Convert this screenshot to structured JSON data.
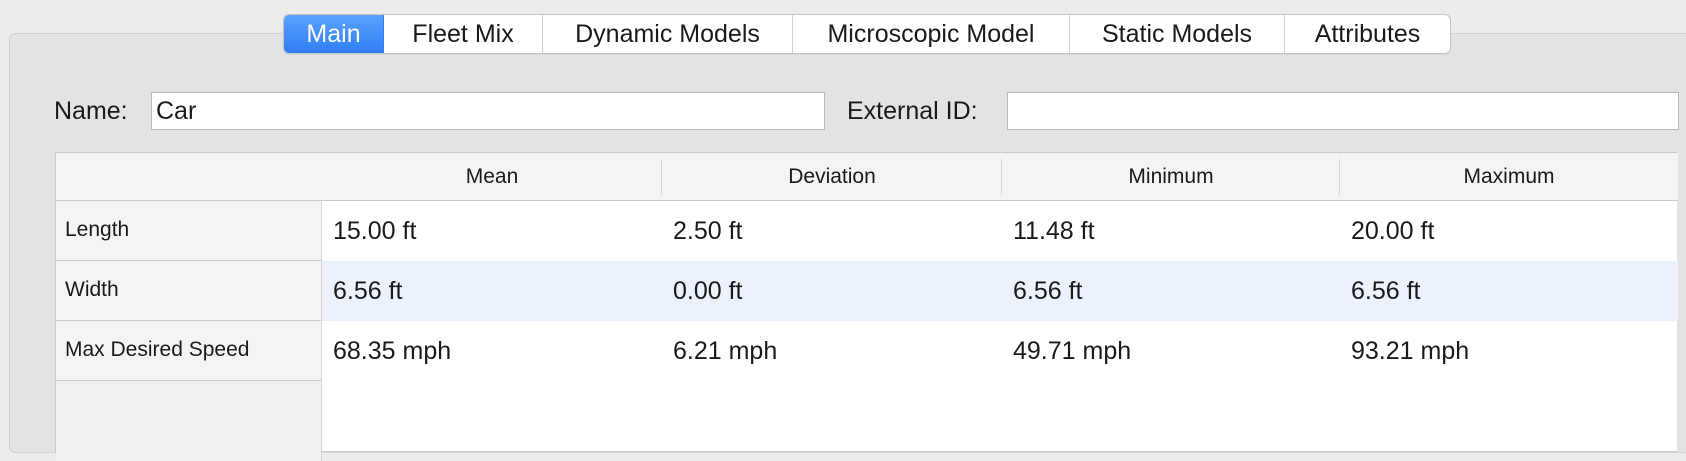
{
  "tabs": [
    {
      "label": "Main",
      "active": true
    },
    {
      "label": "Fleet Mix",
      "active": false
    },
    {
      "label": "Dynamic Models",
      "active": false
    },
    {
      "label": "Microscopic Model",
      "active": false
    },
    {
      "label": "Static Models",
      "active": false
    },
    {
      "label": "Attributes",
      "active": false
    }
  ],
  "form": {
    "name_label": "Name:",
    "name_value": "Car",
    "external_id_label": "External ID:",
    "external_id_value": ""
  },
  "table": {
    "columns": [
      "Mean",
      "Deviation",
      "Minimum",
      "Maximum"
    ],
    "rows": [
      {
        "label": "Length",
        "values": [
          "15.00 ft",
          "2.50 ft",
          "11.48 ft",
          "20.00 ft"
        ]
      },
      {
        "label": "Width",
        "values": [
          "6.56 ft",
          "0.00 ft",
          "6.56 ft",
          "6.56 ft"
        ]
      },
      {
        "label": "Max Desired Speed",
        "values": [
          "68.35 mph",
          "6.21 mph",
          "49.71 mph",
          "93.21 mph"
        ]
      }
    ]
  },
  "colors": {
    "accent": "#2f7ef3",
    "row_highlight": "#ebf2fd"
  }
}
